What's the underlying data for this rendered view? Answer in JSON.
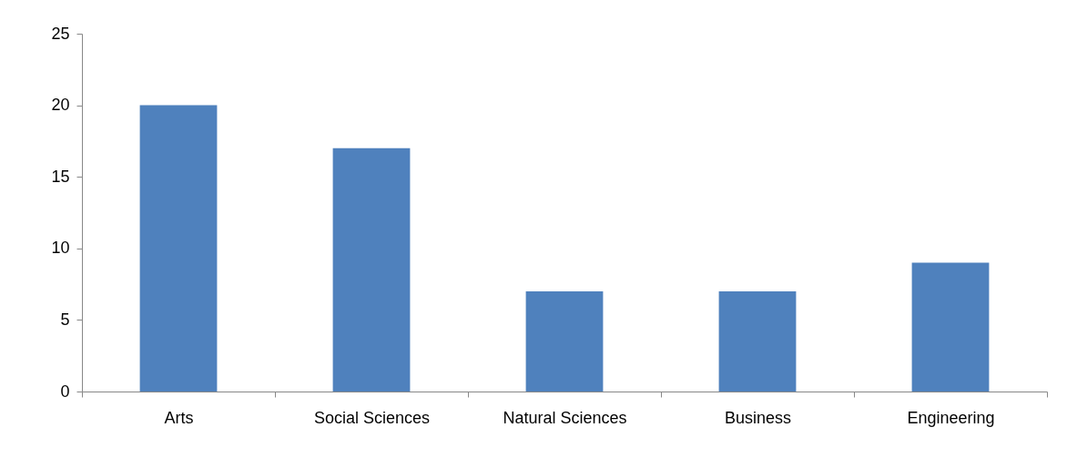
{
  "chart_data": {
    "type": "bar",
    "categories": [
      "Arts",
      "Social Sciences",
      "Natural Sciences",
      "Business",
      "Engineering"
    ],
    "values": [
      20,
      17,
      7,
      7,
      9
    ],
    "color": "#4f81bd",
    "ylim": [
      0,
      25
    ],
    "yticks": [
      0,
      5,
      10,
      15,
      20,
      25
    ],
    "grid": false
  }
}
